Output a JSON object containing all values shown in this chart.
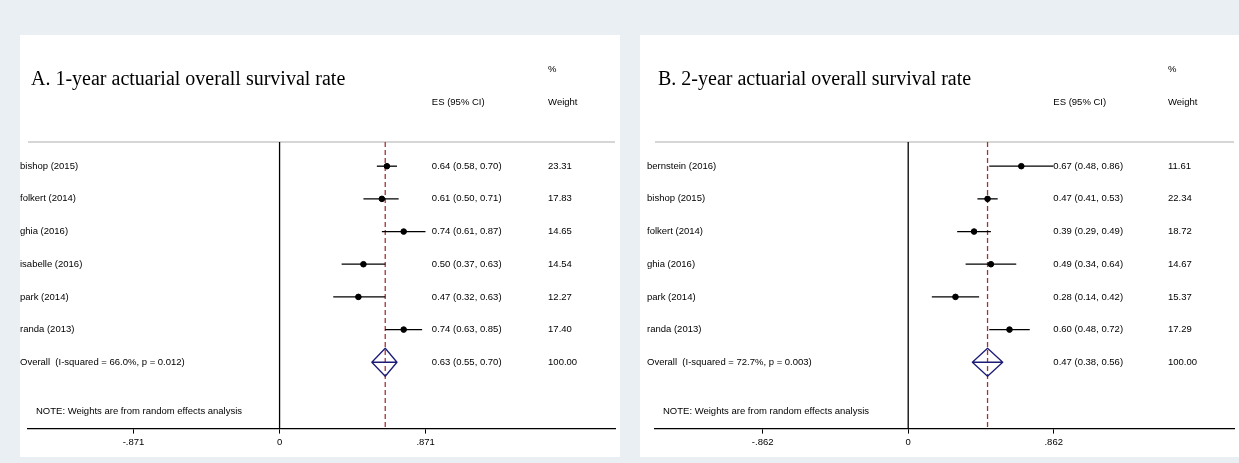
{
  "chart_data": [
    {
      "type": "scatter",
      "title": "A. 1-year actuarial overall survival rate",
      "orientation": "horizontal",
      "legend": false,
      "categories": [
        "bishop (2015)",
        "folkert (2014)",
        "ghia (2016)",
        "isabelle (2016)",
        "park (2014)",
        "randa (2013)",
        "Overall  (I-squared = 66.0%, p = 0.012)"
      ],
      "series": [
        {
          "color": "#000000",
          "marker": "circle",
          "values": [
            0.64,
            0.61,
            0.74,
            0.5,
            0.47,
            0.74,
            null
          ],
          "errors": [
            [
              0.58,
              0.7
            ],
            [
              0.5,
              0.71
            ],
            [
              0.61,
              0.87
            ],
            [
              0.37,
              0.63
            ],
            [
              0.32,
              0.63
            ],
            [
              0.63,
              0.85
            ],
            null
          ]
        },
        {
          "color": "#1c1c78",
          "values": [
            null,
            null,
            null,
            null,
            null,
            null,
            0.63
          ],
          "errors": [
            null,
            null,
            null,
            null,
            null,
            null,
            [
              0.55,
              0.7
            ]
          ]
        }
      ],
      "xlim": [
        -1.5,
        2.0
      ],
      "xticks": [
        {
          "value": -0.871,
          "label": "-.871"
        },
        0,
        {
          "value": 0.871,
          "label": ".871"
        }
      ],
      "ref_lines": [
        {
          "axis": "x",
          "value": 0,
          "color": "#000000",
          "line_style": "solid"
        },
        {
          "axis": "x",
          "value": 0.63,
          "color": "#a83232",
          "line_style": "dashed"
        }
      ],
      "annotations": [
        "ES (95% CI)",
        "%",
        "Weight",
        "NOTE: Weights are from random effects analysis",
        "0.64 (0.58, 0.70)",
        "23.31",
        "0.61 (0.50, 0.71)",
        "17.83",
        "0.74 (0.61, 0.87)",
        "14.65",
        "0.50 (0.37, 0.63)",
        "14.54",
        "0.47 (0.32, 0.63)",
        "12.27",
        "0.74 (0.63, 0.85)",
        "17.40",
        "0.63 (0.55, 0.70)",
        "100.00"
      ]
    },
    {
      "type": "scatter",
      "title": "B. 2-year actuarial overall survival rate",
      "orientation": "horizontal",
      "legend": false,
      "categories": [
        "bernstein (2016)",
        "bishop (2015)",
        "folkert (2014)",
        "ghia (2016)",
        "park (2014)",
        "randa (2013)",
        "Overall  (I-squared = 72.7%, p = 0.003)"
      ],
      "series": [
        {
          "color": "#000000",
          "marker": "circle",
          "values": [
            0.67,
            0.47,
            0.39,
            0.49,
            0.28,
            0.6,
            null
          ],
          "errors": [
            [
              0.48,
              0.86
            ],
            [
              0.41,
              0.53
            ],
            [
              0.29,
              0.49
            ],
            [
              0.34,
              0.64
            ],
            [
              0.14,
              0.42
            ],
            [
              0.48,
              0.72
            ],
            null
          ]
        },
        {
          "color": "#1c1c78",
          "values": [
            null,
            null,
            null,
            null,
            null,
            null,
            0.47
          ],
          "errors": [
            null,
            null,
            null,
            null,
            null,
            null,
            [
              0.38,
              0.56
            ]
          ]
        }
      ],
      "xlim": [
        -1.5,
        1.93
      ],
      "xticks": [
        {
          "value": -0.862,
          "label": "-.862"
        },
        0,
        {
          "value": 0.862,
          "label": ".862"
        }
      ],
      "ref_lines": [
        {
          "axis": "x",
          "value": 0,
          "color": "#000000",
          "line_style": "solid"
        },
        {
          "axis": "x",
          "value": 0.47,
          "color": "#a83232",
          "line_style": "dashed"
        }
      ],
      "annotations": [
        "ES (95% CI)",
        "%",
        "Weight",
        "NOTE: Weights are from random effects analysis",
        "0.67 (0.48, 0.86)",
        "11.61",
        "0.47 (0.41, 0.53)",
        "22.34",
        "0.39 (0.29, 0.49)",
        "18.72",
        "0.49 (0.34, 0.64)",
        "14.67",
        "0.28 (0.14, 0.42)",
        "15.37",
        "0.60 (0.48, 0.72)",
        "17.29",
        "0.47 (0.38, 0.56)",
        "100.00"
      ]
    }
  ]
}
